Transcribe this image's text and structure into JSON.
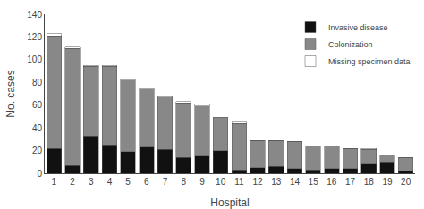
{
  "chart_data": {
    "type": "bar",
    "stacked": true,
    "xlabel": "Hospital",
    "ylabel": "No. cases",
    "categories": [
      "1",
      "2",
      "3",
      "4",
      "5",
      "6",
      "7",
      "8",
      "9",
      "10",
      "11",
      "12",
      "13",
      "14",
      "15",
      "16",
      "17",
      "18",
      "19",
      "20"
    ],
    "series": [
      {
        "name": "Invasive disease",
        "color": "#111111",
        "values": [
          22,
          7,
          33,
          25,
          19,
          23,
          21,
          14,
          15,
          20,
          3,
          5,
          6,
          4,
          3,
          4,
          4,
          8,
          10,
          2
        ]
      },
      {
        "name": "Colonization",
        "color": "#888888",
        "values": [
          99,
          103,
          61,
          69,
          63,
          51,
          46,
          48,
          44,
          29,
          41,
          24,
          23,
          24,
          21,
          20,
          18,
          13,
          6,
          12
        ]
      },
      {
        "name": "Missing specimen data",
        "color": "#ffffff",
        "values": [
          2,
          1,
          1,
          1,
          1,
          1,
          1,
          1,
          2,
          0,
          1,
          0,
          0,
          0,
          0,
          0,
          0,
          1,
          0,
          0
        ]
      }
    ],
    "ylim": [
      0,
      140
    ],
    "yticks": [
      0,
      20,
      40,
      60,
      80,
      100,
      120,
      140
    ],
    "grid": false,
    "legend": "upper right"
  }
}
